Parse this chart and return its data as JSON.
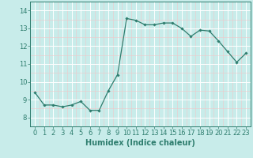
{
  "x": [
    0,
    1,
    2,
    3,
    4,
    5,
    6,
    7,
    8,
    9,
    10,
    11,
    12,
    13,
    14,
    15,
    16,
    17,
    18,
    19,
    20,
    21,
    22,
    23
  ],
  "y": [
    9.4,
    8.7,
    8.7,
    8.6,
    8.7,
    8.9,
    8.4,
    8.4,
    9.5,
    10.4,
    13.55,
    13.45,
    13.2,
    13.2,
    13.3,
    13.3,
    13.0,
    12.55,
    12.9,
    12.85,
    12.3,
    11.7,
    11.1,
    11.6
  ],
  "line_color": "#2e7d6e",
  "marker": "D",
  "marker_size": 1.8,
  "bg_color": "#c8ecea",
  "grid_color_major": "#ffffff",
  "grid_color_minor": "#f0c8c8",
  "xlabel": "Humidex (Indice chaleur)",
  "xlabel_fontsize": 7,
  "tick_fontsize": 6,
  "ylim": [
    7.5,
    14.5
  ],
  "xlim": [
    -0.5,
    23.5
  ],
  "yticks": [
    8,
    9,
    10,
    11,
    12,
    13,
    14
  ],
  "xticks": [
    0,
    1,
    2,
    3,
    4,
    5,
    6,
    7,
    8,
    9,
    10,
    11,
    12,
    13,
    14,
    15,
    16,
    17,
    18,
    19,
    20,
    21,
    22,
    23
  ]
}
